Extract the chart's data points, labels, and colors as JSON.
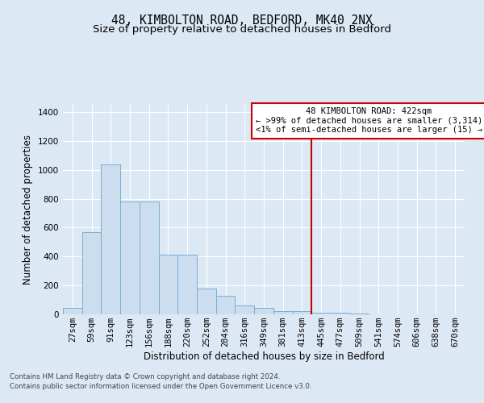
{
  "title": "48, KIMBOLTON ROAD, BEDFORD, MK40 2NX",
  "subtitle": "Size of property relative to detached houses in Bedford",
  "xlabel": "Distribution of detached houses by size in Bedford",
  "ylabel": "Number of detached properties",
  "footnote1": "Contains HM Land Registry data © Crown copyright and database right 2024.",
  "footnote2": "Contains public sector information licensed under the Open Government Licence v3.0.",
  "bin_labels": [
    "27sqm",
    "59sqm",
    "91sqm",
    "123sqm",
    "156sqm",
    "188sqm",
    "220sqm",
    "252sqm",
    "284sqm",
    "316sqm",
    "349sqm",
    "381sqm",
    "413sqm",
    "445sqm",
    "477sqm",
    "509sqm",
    "541sqm",
    "574sqm",
    "606sqm",
    "638sqm",
    "670sqm"
  ],
  "bar_values": [
    47,
    570,
    1040,
    780,
    780,
    415,
    415,
    180,
    130,
    60,
    47,
    20,
    20,
    10,
    10,
    5,
    2,
    2,
    1,
    0,
    0
  ],
  "bar_color": "#ccddf0",
  "bar_edge_color": "#7aaed0",
  "vline_color": "#cc0000",
  "annotation_title": "48 KIMBOLTON ROAD: 422sqm",
  "annotation_line1": "← >99% of detached houses are smaller (3,314)",
  "annotation_line2": "<1% of semi-detached houses are larger (15) →",
  "annotation_box_edgecolor": "#cc0000",
  "ylim": [
    0,
    1450
  ],
  "yticks": [
    0,
    200,
    400,
    600,
    800,
    1000,
    1200,
    1400
  ],
  "background_color": "#dce8f4",
  "grid_color": "#ffffff",
  "title_fontsize": 10.5,
  "subtitle_fontsize": 9.5,
  "axis_label_fontsize": 8.5,
  "tick_fontsize": 7.5,
  "footnote_fontsize": 6.2
}
